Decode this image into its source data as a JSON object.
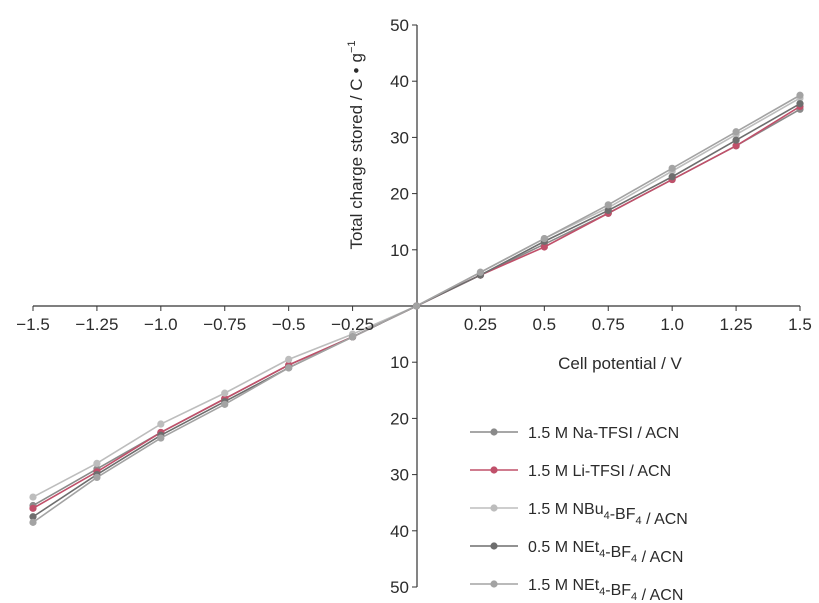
{
  "chart_data": {
    "type": "line",
    "xlabel": "Cell potential / V",
    "ylabel_main": "Total charge stored / C",
    "ylabel_unit": "g",
    "ylabel_exp": "−1",
    "xlim": [
      -1.5,
      1.5
    ],
    "ylim": [
      -50,
      50
    ],
    "y_axis_labels_absolute": true,
    "grid": false,
    "legend_position": "bottom-right",
    "x_ticks": [
      -1.5,
      -1.25,
      -1.0,
      -0.75,
      -0.5,
      -0.25,
      0.25,
      0.5,
      0.75,
      1.0,
      1.25,
      1.5
    ],
    "x_tick_labels": [
      "−1.5",
      "−1.25",
      "−1.0",
      "−0.75",
      "−0.5",
      "−0.25",
      "0.25",
      "0.5",
      "0.75",
      "1.0",
      "1.25",
      "1.5"
    ],
    "y_ticks": [
      50,
      40,
      30,
      20,
      10,
      -10,
      -20,
      -30,
      -40,
      -50
    ],
    "y_tick_labels": [
      "50",
      "40",
      "30",
      "20",
      "10",
      "10",
      "20",
      "30",
      "40",
      "50"
    ],
    "x": [
      -1.5,
      -1.25,
      -1.0,
      -0.75,
      -0.5,
      -0.25,
      0,
      0.25,
      0.5,
      0.75,
      1.0,
      1.25,
      1.5
    ],
    "series": [
      {
        "name_parts": [
          [
            "1.5 M Na-TFSI / ACN",
            ""
          ]
        ],
        "color": "#8a8a8a",
        "values": [
          -35.5,
          -29,
          -22.5,
          -16.5,
          -10.5,
          -5.5,
          0,
          5.5,
          11,
          16.5,
          22.5,
          28.5,
          35
        ]
      },
      {
        "name_parts": [
          [
            "1.5 M Li-TFSI / ACN",
            ""
          ]
        ],
        "color": "#c0506a",
        "values": [
          -36,
          -29.5,
          -22.5,
          -16.5,
          -10.5,
          -5.5,
          0,
          5.5,
          10.5,
          16.5,
          22.5,
          28.5,
          35.5
        ]
      },
      {
        "name_parts": [
          [
            "1.5 M NBu",
            "4"
          ],
          [
            "-BF",
            "4"
          ],
          [
            " / ACN",
            ""
          ]
        ],
        "color": "#bdbdbd",
        "values": [
          -34,
          -28,
          -21,
          -15.5,
          -9.5,
          -5,
          0,
          6,
          12,
          17.5,
          24,
          30.5,
          37
        ]
      },
      {
        "name_parts": [
          [
            "0.5 M NEt",
            "4"
          ],
          [
            "-BF",
            "4"
          ],
          [
            " / ACN",
            ""
          ]
        ],
        "color": "#6e6e6e",
        "values": [
          -37.5,
          -30,
          -23,
          -17,
          -11,
          -5.5,
          0,
          5.5,
          11.5,
          17,
          23,
          29.5,
          36
        ]
      },
      {
        "name_parts": [
          [
            "1.5 M NEt",
            "4"
          ],
          [
            "-BF",
            "4"
          ],
          [
            " / ACN",
            ""
          ]
        ],
        "color": "#a3a3a3",
        "values": [
          -38.5,
          -30.5,
          -23.5,
          -17.5,
          -11,
          -5.5,
          0,
          6,
          12,
          18,
          24.5,
          31,
          37.5
        ]
      }
    ]
  }
}
